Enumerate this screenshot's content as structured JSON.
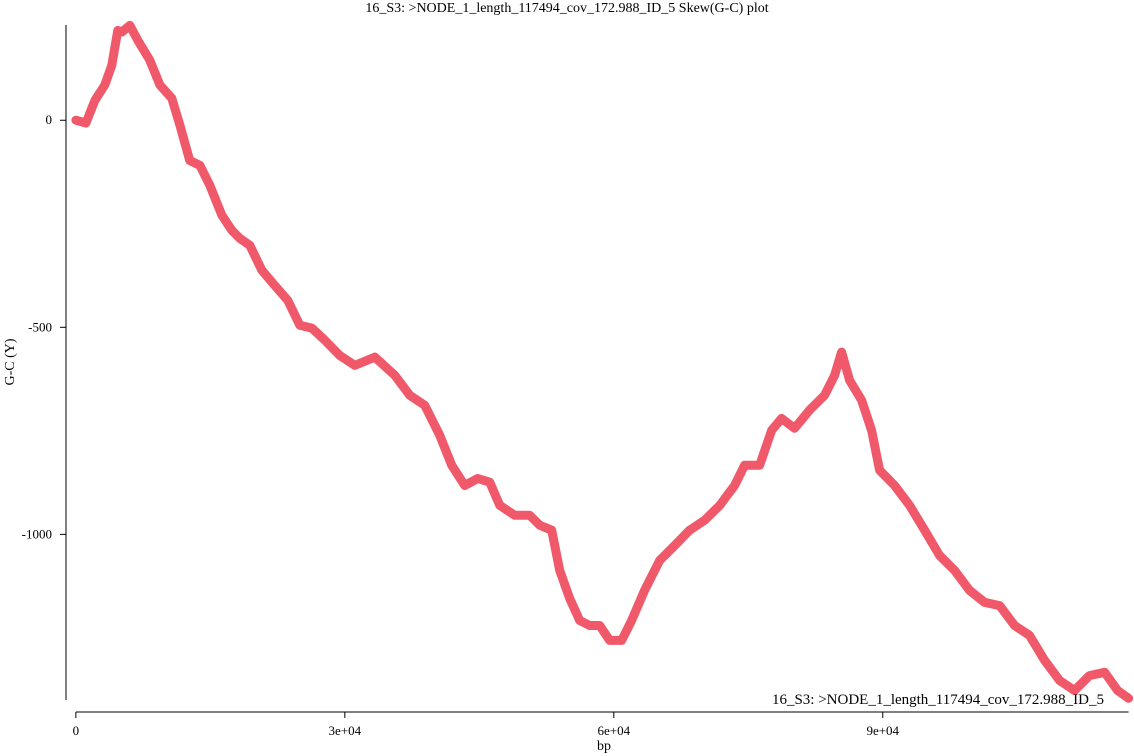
{
  "chart_data": {
    "type": "line",
    "title": "16_S3: >NODE_1_length_117494_cov_172.988_ID_5 Skew(G-C) plot",
    "x_label": "bp",
    "y_label": "G-C (Y)",
    "x": [
      0,
      1115,
      2120,
      3230,
      4010,
      4680,
      5130,
      6020,
      6910,
      8250,
      9370,
      10700,
      11600,
      12700,
      13830,
      14940,
      16280,
      17400,
      18290,
      19400,
      20740,
      22190,
      23640,
      24980,
      26320,
      27760,
      29440,
      31110,
      33340,
      35570,
      37240,
      38910,
      40590,
      41920,
      43370,
      44820,
      46160,
      47280,
      48950,
      50620,
      51740,
      53070,
      53970,
      55080,
      56200,
      57310,
      58430,
      59540,
      60880,
      61990,
      63440,
      65120,
      66790,
      68460,
      70130,
      71810,
      73480,
      74590,
      76270,
      77600,
      78720,
      80170,
      81840,
      83510,
      84630,
      85410,
      86300,
      87640,
      88760,
      89650,
      91320,
      92990,
      94670,
      96340,
      98010,
      99680,
      101350,
      103030,
      104700,
      106370,
      108040,
      109720,
      111390,
      113060,
      114740,
      116190,
      117420
    ],
    "series": [
      {
        "name": "16_S3: >NODE_1_length_117494_cov_172.988_ID_5",
        "color": "#f0596a",
        "values": [
          0,
          -7,
          48,
          85,
          133,
          217,
          213,
          229,
          193,
          145,
          85,
          53,
          -12,
          -97,
          -109,
          -157,
          -229,
          -266,
          -285,
          -302,
          -362,
          -399,
          -435,
          -495,
          -502,
          -531,
          -568,
          -592,
          -572,
          -616,
          -664,
          -688,
          -761,
          -833,
          -882,
          -865,
          -874,
          -930,
          -954,
          -954,
          -978,
          -990,
          -1087,
          -1155,
          -1208,
          -1220,
          -1220,
          -1256,
          -1256,
          -1208,
          -1135,
          -1063,
          -1027,
          -990,
          -966,
          -930,
          -882,
          -833,
          -833,
          -749,
          -720,
          -744,
          -700,
          -664,
          -616,
          -560,
          -628,
          -676,
          -749,
          -845,
          -882,
          -930,
          -990,
          -1051,
          -1087,
          -1135,
          -1164,
          -1172,
          -1220,
          -1244,
          -1304,
          -1353,
          -1377,
          -1341,
          -1333,
          -1377,
          -1396
        ]
      }
    ],
    "xlim": [
      -1100,
      117800
    ],
    "xticks": [
      0,
      {
        "value": 30000,
        "label": "3e+04"
      },
      {
        "value": 60000,
        "label": "6e+04"
      },
      {
        "value": 90000,
        "label": "9e+04"
      }
    ],
    "ylim": [
      -1400,
      230
    ],
    "yticks": [
      0,
      -500,
      -1000
    ],
    "legend": "bottom-right"
  }
}
